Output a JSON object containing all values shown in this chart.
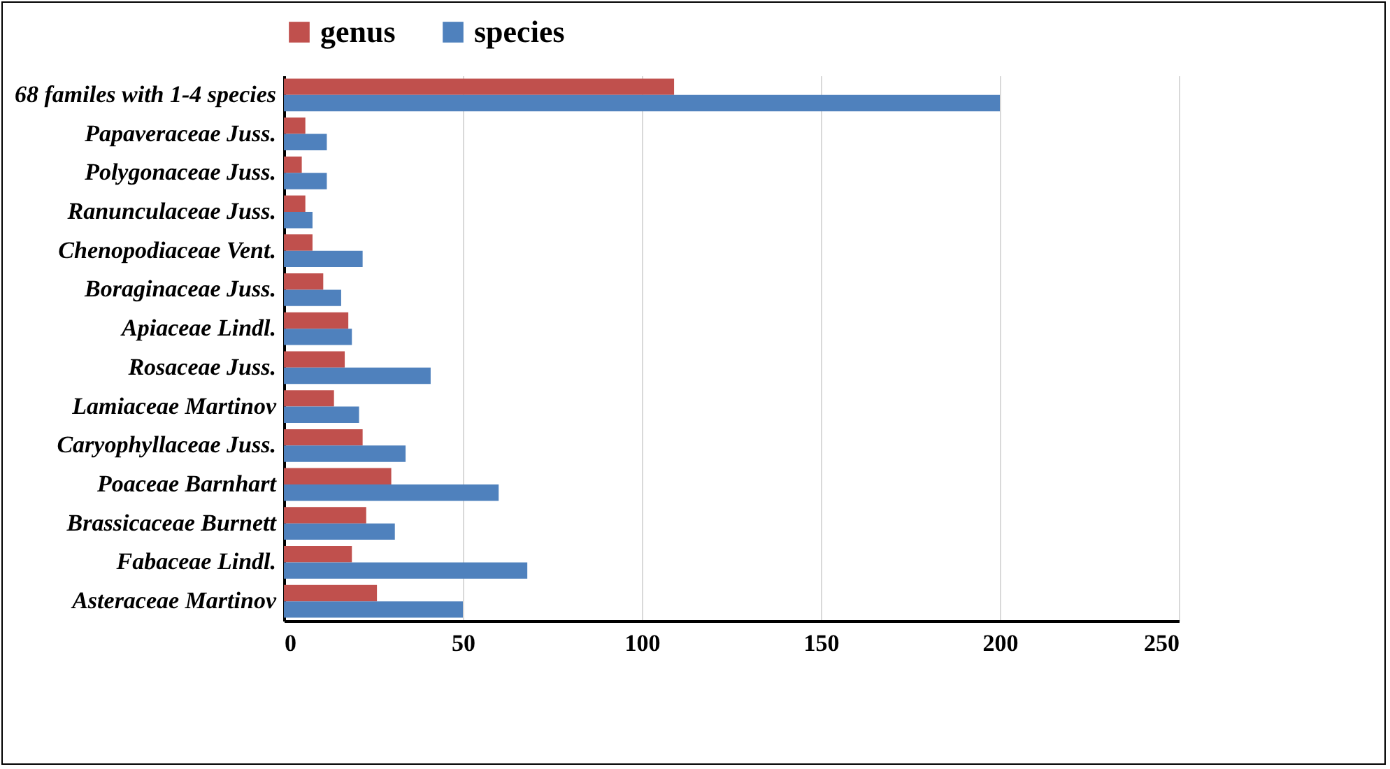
{
  "chart_data": {
    "type": "bar",
    "orientation": "horizontal",
    "categories": [
      "68 familes with 1-4 species",
      "Papaveraceae Juss.",
      "Polygonaceae Juss.",
      "Ranunculaceae Juss.",
      "Chenopodiaceae Vent.",
      "Boraginaceae Juss.",
      "Apiaceae Lindl.",
      "Rosaceae Juss.",
      "Lamiaceae Martinov",
      "Caryophyllaceae Juss.",
      "Poaceae Barnhart",
      "Brassicaceae Burnett",
      "Fabaceae Lindl.",
      "Asteraceae Martinov"
    ],
    "series": [
      {
        "name": "genus",
        "color": "#c0504d",
        "values": [
          109,
          6,
          5,
          6,
          8,
          11,
          18,
          17,
          14,
          22,
          30,
          23,
          19,
          26
        ]
      },
      {
        "name": "species",
        "color": "#4f81bd",
        "values": [
          200,
          12,
          12,
          8,
          22,
          16,
          19,
          41,
          21,
          34,
          60,
          31,
          68,
          50
        ]
      }
    ],
    "xlim": [
      0,
      250
    ],
    "xticks": [
      0,
      50,
      100,
      150,
      200,
      250
    ],
    "grid": "x",
    "legend": "top"
  }
}
